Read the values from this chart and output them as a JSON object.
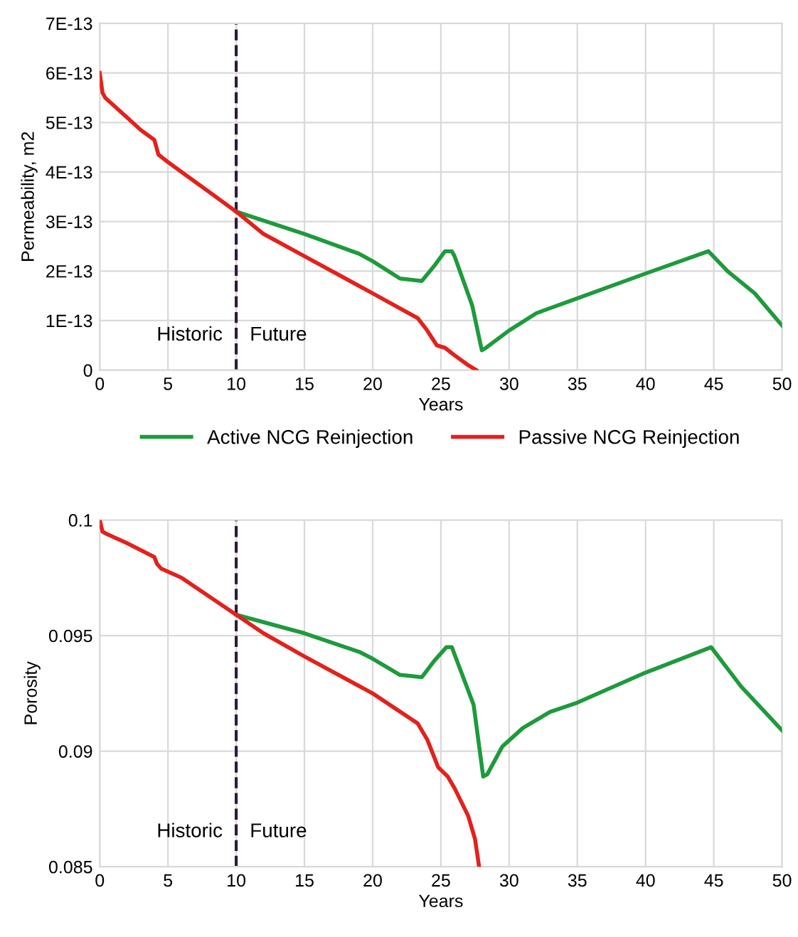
{
  "chart_data": [
    {
      "type": "line",
      "xlabel": "Years",
      "ylabel": "Permeability, m2",
      "xlim": [
        0,
        50
      ],
      "xticks": [
        0,
        5,
        10,
        15,
        20,
        25,
        30,
        35,
        40,
        45,
        50
      ],
      "ylim": [
        0,
        7e-13
      ],
      "yticks": [
        0,
        {
          "value": 1e-13,
          "label": "1E-13"
        },
        {
          "value": 2e-13,
          "label": "2E-13"
        },
        {
          "value": 3e-13,
          "label": "3E-13"
        },
        {
          "value": 4e-13,
          "label": "4E-13"
        },
        {
          "value": 5e-13,
          "label": "5E-13"
        },
        {
          "value": 6e-13,
          "label": "6E-13"
        },
        {
          "value": 7e-13,
          "label": "7E-13"
        }
      ],
      "grid": true,
      "legend": "bottom",
      "marker": "none",
      "line_style": "solid",
      "ref_lines": [
        {
          "axis": "x",
          "value": 10,
          "color": "#2e1a3e",
          "line_style": "dashed"
        }
      ],
      "annotations": [
        "Historic",
        "Future"
      ],
      "series": [
        {
          "name": "Active NCG Reinjection",
          "color": "#1e9a3c",
          "x": [
            10,
            15,
            19,
            20,
            22,
            23.6,
            24.5,
            25.3,
            25.8,
            26,
            27.3,
            28,
            28.3,
            30,
            32,
            35,
            40,
            44.6,
            46,
            48,
            50
          ],
          "values": [
            3.2e-13,
            2.75e-13,
            2.35e-13,
            2.2e-13,
            1.85e-13,
            1.8e-13,
            2.1e-13,
            2.4e-13,
            2.4e-13,
            2.3e-13,
            1.3e-13,
            4e-14,
            4.5e-14,
            8e-14,
            1.15e-13,
            1.45e-13,
            1.95e-13,
            2.4e-13,
            2e-13,
            1.55e-13,
            9e-14
          ]
        },
        {
          "name": "Passive NCG Reinjection",
          "color": "#e3211c",
          "x": [
            0,
            0.2,
            0.4,
            2,
            3,
            4,
            4.1,
            4.3,
            5,
            6,
            8,
            10,
            12,
            15,
            20,
            23.3,
            24,
            24.7,
            25.3,
            26,
            27,
            27.6
          ],
          "values": [
            6e-13,
            5.6e-13,
            5.5e-13,
            5.1e-13,
            4.85e-13,
            4.65e-13,
            4.55e-13,
            4.35e-13,
            4.2e-13,
            4e-13,
            3.6e-13,
            3.2e-13,
            2.75e-13,
            2.3e-13,
            1.55e-13,
            1.05e-13,
            8e-14,
            5e-14,
            4.5e-14,
            3e-14,
            1e-14,
            0
          ]
        }
      ]
    },
    {
      "type": "line",
      "xlabel": "Years",
      "ylabel": "Porosity",
      "xlim": [
        0,
        50
      ],
      "xticks": [
        0,
        5,
        10,
        15,
        20,
        25,
        30,
        35,
        40,
        45,
        50
      ],
      "ylim": [
        0.085,
        0.1
      ],
      "yticks": [
        0.085,
        0.09,
        0.095,
        0.1
      ],
      "grid": true,
      "marker": "none",
      "line_style": "solid",
      "ref_lines": [
        {
          "axis": "x",
          "value": 10,
          "color": "#2e1a3e",
          "line_style": "dashed"
        }
      ],
      "annotations": [
        "Historic",
        "Future"
      ],
      "series": [
        {
          "color": "#1e9a3c",
          "x": [
            10,
            15,
            19,
            20,
            22,
            23.6,
            24.5,
            25.4,
            25.8,
            27.4,
            28.1,
            28.4,
            29.5,
            31,
            33,
            35,
            40,
            44.8,
            47,
            50
          ],
          "values": [
            0.0959,
            0.0951,
            0.0943,
            0.094,
            0.0933,
            0.0932,
            0.0939,
            0.0945,
            0.0945,
            0.092,
            0.0889,
            0.089,
            0.0902,
            0.091,
            0.0917,
            0.0921,
            0.0934,
            0.0945,
            0.0928,
            0.0909
          ]
        },
        {
          "color": "#e3211c",
          "x": [
            0,
            0.2,
            0.5,
            2,
            4,
            4.2,
            4.5,
            6,
            8,
            10,
            12,
            15,
            20,
            23.3,
            24,
            24.8,
            25.5,
            26,
            27,
            27.5,
            27.8
          ],
          "values": [
            0.1,
            0.0995,
            0.0994,
            0.099,
            0.0984,
            0.0981,
            0.0979,
            0.0975,
            0.0967,
            0.0959,
            0.0951,
            0.0941,
            0.0925,
            0.0912,
            0.0905,
            0.0893,
            0.0889,
            0.0884,
            0.0872,
            0.0862,
            0.085
          ]
        }
      ]
    }
  ]
}
